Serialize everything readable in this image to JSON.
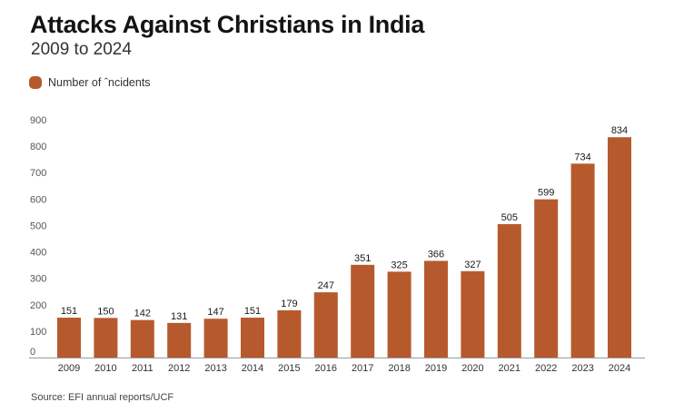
{
  "chart_data": {
    "type": "bar",
    "title": "Attacks Against Christians in India",
    "subtitle": "2009 to 2024",
    "xlabel": "",
    "ylabel": "",
    "legend": {
      "entries": [
        "Number of ˆncidents"
      ],
      "position": "top-left"
    },
    "ylim": [
      0,
      900
    ],
    "yticks": [
      0,
      100,
      200,
      300,
      400,
      500,
      600,
      700,
      800,
      900
    ],
    "grid": false,
    "categories": [
      "2009",
      "2010",
      "2011",
      "2012",
      "2013",
      "2014",
      "2015",
      "2016",
      "2017",
      "2018",
      "2019",
      "2020",
      "2021",
      "2022",
      "2023",
      "2024"
    ],
    "series": [
      {
        "name": "Number of ˆncidents",
        "color": "#b65a2e",
        "values": [
          151,
          150,
          142,
          131,
          147,
          151,
          179,
          247,
          351,
          325,
          366,
          327,
          505,
          599,
          734,
          834
        ]
      }
    ],
    "source": "Source: EFI annual reports/UCF"
  }
}
